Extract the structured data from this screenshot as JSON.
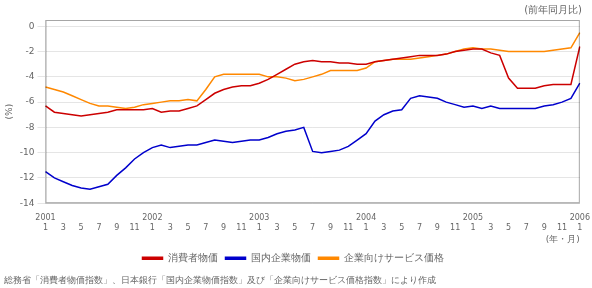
{
  "chart_data": {
    "type": "line",
    "title": "(前年同月比)",
    "y_label": "(%)",
    "x_label": "(年・月)",
    "annotations": [
      "総務省「消費者物価指数」、日本銀行「国内企業物価指数」及び「企業向けサービス価格指数」により作成"
    ],
    "categories": [
      "2001\n1",
      null,
      "3",
      null,
      "5",
      null,
      "7",
      null,
      "9",
      null,
      "11",
      null,
      "2002\n1",
      null,
      "3",
      null,
      "5",
      null,
      "7",
      null,
      "9",
      null,
      "11",
      null,
      "2003\n1",
      null,
      "3",
      null,
      "5",
      null,
      "7",
      null,
      "9",
      null,
      "11",
      null,
      "2004\n1",
      null,
      "3",
      null,
      "5",
      null,
      "7",
      null,
      "9",
      null,
      "11",
      null,
      "2005\n1",
      null,
      "3",
      null,
      "5",
      null,
      "7",
      null,
      "9",
      null,
      "11",
      null,
      "2006\n1"
    ],
    "series": [
      {
        "name": "消費者物価",
        "color": "#cc0000",
        "values": [
          -6.3,
          -6.8,
          -6.9,
          -7.0,
          -7.1,
          -7.0,
          -6.9,
          -6.8,
          -6.6,
          -6.6,
          -6.6,
          -6.6,
          -6.5,
          -6.8,
          -6.7,
          -6.7,
          -6.5,
          -6.3,
          -5.8,
          -5.3,
          -5.0,
          -4.8,
          -4.7,
          -4.7,
          -4.5,
          -4.2,
          -3.8,
          -3.4,
          -3.0,
          -2.8,
          -2.7,
          -2.8,
          -2.8,
          -2.9,
          -2.9,
          -3.0,
          -3.0,
          -2.8,
          -2.7,
          -2.6,
          -2.5,
          -2.4,
          -2.3,
          -2.3,
          -2.3,
          -2.2,
          -2.0,
          -1.9,
          -1.8,
          -1.8,
          -2.1,
          -2.3,
          -4.1,
          -4.9,
          -4.9,
          -4.9,
          -4.7,
          -4.6,
          -4.6,
          -4.6,
          -1.6
        ]
      },
      {
        "name": "国内企業物価",
        "color": "#0000cc",
        "values": [
          -11.5,
          -12.0,
          -12.3,
          -12.6,
          -12.8,
          -12.9,
          -12.7,
          -12.5,
          -11.8,
          -11.2,
          -10.5,
          -10.0,
          -9.6,
          -9.4,
          -9.6,
          -9.5,
          -9.4,
          -9.4,
          -9.2,
          -9.0,
          -9.1,
          -9.2,
          -9.1,
          -9.0,
          -9.0,
          -8.8,
          -8.5,
          -8.3,
          -8.2,
          -8.0,
          -9.9,
          -10.0,
          -9.9,
          -9.8,
          -9.5,
          -9.0,
          -8.5,
          -7.5,
          -7.0,
          -6.7,
          -6.6,
          -5.7,
          -5.5,
          -5.6,
          -5.7,
          -6.0,
          -6.2,
          -6.4,
          -6.3,
          -6.5,
          -6.3,
          -6.5,
          -6.5,
          -6.5,
          -6.5,
          -6.5,
          -6.3,
          -6.2,
          -6.0,
          -5.7,
          -4.5
        ]
      },
      {
        "name": "企業向けサービス価格",
        "color": "#ff8800",
        "values": [
          -4.8,
          -5.0,
          -5.2,
          -5.5,
          -5.8,
          -6.1,
          -6.3,
          -6.3,
          -6.4,
          -6.5,
          -6.4,
          -6.2,
          -6.1,
          -6.0,
          -5.9,
          -5.9,
          -5.8,
          -5.9,
          -5.0,
          -4.0,
          -3.8,
          -3.8,
          -3.8,
          -3.8,
          -3.8,
          -4.0,
          -4.0,
          -4.1,
          -4.3,
          -4.2,
          -4.0,
          -3.8,
          -3.5,
          -3.5,
          -3.5,
          -3.5,
          -3.3,
          -2.8,
          -2.7,
          -2.6,
          -2.6,
          -2.6,
          -2.5,
          -2.4,
          -2.3,
          -2.2,
          -2.0,
          -1.8,
          -1.7,
          -1.8,
          -1.8,
          -1.9,
          -2.0,
          -2.0,
          -2.0,
          -2.0,
          -2.0,
          -1.9,
          -1.8,
          -1.7,
          -0.5
        ]
      }
    ],
    "ylim": [
      -14,
      0.5
    ],
    "yticks": [
      0,
      -2,
      -4,
      -6,
      -8,
      -10,
      -12,
      -14
    ],
    "grid": true,
    "legend": "bottom"
  }
}
